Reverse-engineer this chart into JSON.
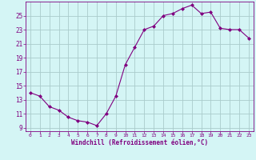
{
  "x": [
    0,
    1,
    2,
    3,
    4,
    5,
    6,
    7,
    8,
    9,
    10,
    11,
    12,
    13,
    14,
    15,
    16,
    17,
    18,
    19,
    20,
    21,
    22,
    23
  ],
  "y": [
    14.0,
    13.5,
    12.0,
    11.5,
    10.5,
    10.0,
    9.8,
    9.3,
    11.0,
    13.5,
    18.0,
    20.5,
    23.0,
    23.5,
    25.0,
    25.3,
    26.0,
    26.5,
    25.3,
    25.5,
    23.2,
    23.0,
    23.0,
    21.8
  ],
  "line_color": "#800080",
  "marker": "D",
  "marker_size": 2,
  "bg_color": "#d4f5f5",
  "grid_color": "#aacccc",
  "xlabel": "Windchill (Refroidissement éolien,°C)",
  "xlabel_color": "#800080",
  "tick_color": "#800080",
  "ylim": [
    8.5,
    27
  ],
  "xlim": [
    -0.5,
    23.5
  ],
  "yticks": [
    9,
    11,
    13,
    15,
    17,
    19,
    21,
    23,
    25
  ],
  "xticks": [
    0,
    1,
    2,
    3,
    4,
    5,
    6,
    7,
    8,
    9,
    10,
    11,
    12,
    13,
    14,
    15,
    16,
    17,
    18,
    19,
    20,
    21,
    22,
    23
  ],
  "figsize": [
    3.2,
    2.0
  ],
  "dpi": 100
}
